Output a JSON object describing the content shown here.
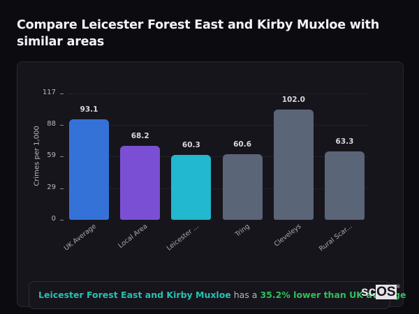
{
  "page": {
    "title": "Compare Leicester Forest East and Kirby Muxloe with similar areas"
  },
  "chart_data": {
    "type": "bar",
    "title": "Compare Leicester Forest East and Kirby Muxloe with similar areas",
    "xlabel": "",
    "ylabel": "Crimes per 1,000",
    "ylim": [
      0,
      117
    ],
    "yticks": [
      0,
      29,
      59,
      88,
      117
    ],
    "grid": true,
    "categories": [
      "UK Average",
      "Local Area",
      "Leicester ...",
      "Tring",
      "Cleveleys",
      "Rural Scar..."
    ],
    "values": [
      93.1,
      68.2,
      60.3,
      60.6,
      102.0,
      63.3
    ],
    "value_labels": [
      "93.1",
      "68.2",
      "60.3",
      "60.6",
      "102.0",
      "63.3"
    ],
    "colors": [
      "#3572d8",
      "#7a4fd4",
      "#22b8cf",
      "#5b6578",
      "#5b6578",
      "#5b6578"
    ]
  },
  "footer": {
    "area_name": "Leicester Forest East and Kirby Muxloe",
    "connector": " has a ",
    "stat": "35.2% lower than UK average"
  },
  "logo": {
    "part1": "sc",
    "part2": "OS",
    "mark": "®"
  }
}
